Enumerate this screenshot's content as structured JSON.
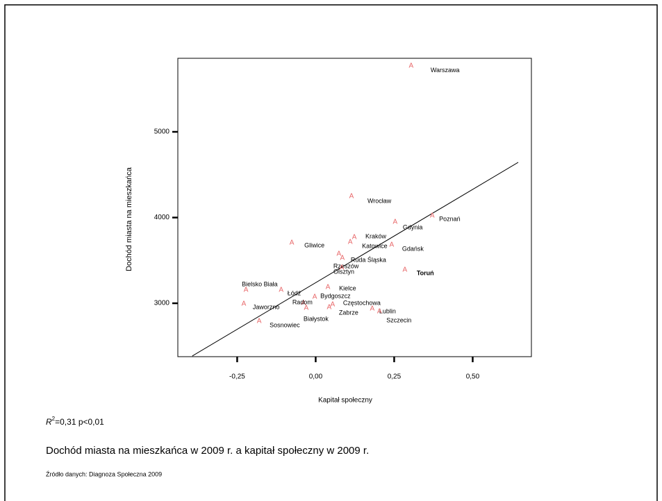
{
  "chart_data": {
    "type": "scatter",
    "x_label": "Kapitał społeczny",
    "y_label": "Dochód miasta na mieszkańca",
    "marker": "A",
    "color": "#e8686a",
    "xlim": [
      -0.439,
      0.687
    ],
    "ylim": [
      2377,
      5858
    ],
    "xticks": [
      {
        "value": -0.25,
        "label": "-0,25"
      },
      {
        "value": 0,
        "label": "0,00"
      },
      {
        "value": 0.25,
        "label": "0,25"
      },
      {
        "value": 0.5,
        "label": "0,50"
      }
    ],
    "yticks": [
      3000,
      4000,
      5000
    ],
    "labels": [
      "Warszawa",
      "Wrocław",
      "Poznań",
      "Gdynia",
      "Kraków",
      "Katowice",
      "Gdańsk",
      "Gliwice",
      "Ruda Śląska",
      "Rzeszów",
      "Olsztyn",
      "Toruń",
      "Bielsko Biała",
      "Łódź",
      "Kielce",
      "Bydgoszcz",
      "Radom",
      "Jaworzno",
      "Częstochowa",
      "Zabrze",
      "Lublin",
      "Szczecin",
      "Białystok",
      "Sosnowiec"
    ],
    "x": [
      0.304,
      0.114,
      0.371,
      0.253,
      0.123,
      0.11,
      0.242,
      -0.076,
      0.074,
      0.085,
      0.083,
      0.284,
      -0.222,
      -0.11,
      0.039,
      -0.003,
      -0.039,
      -0.229,
      0.054,
      0.043,
      0.18,
      0.203,
      -0.03,
      -0.18
    ],
    "y": [
      5770,
      4247,
      4020,
      3947,
      3769,
      3713,
      3680,
      3704,
      3575,
      3526,
      3413,
      3389,
      3154,
      3154,
      3186,
      3073,
      3000,
      2992,
      2984,
      2951,
      2935,
      2903,
      2943,
      2789
    ],
    "fit": {
      "x": [
        -0.393,
        0.645
      ],
      "y": [
        2385,
        4644
      ]
    },
    "annotation": {
      "r": "R",
      "exp": "2",
      "rest": "=0,31 p<0,01"
    },
    "caption": "Dochód miasta na mieszkańca w 2009 r. a kapitał społeczny w 2009 r.",
    "source": "Źródło danych: Diagnoza Społeczna 2009"
  }
}
